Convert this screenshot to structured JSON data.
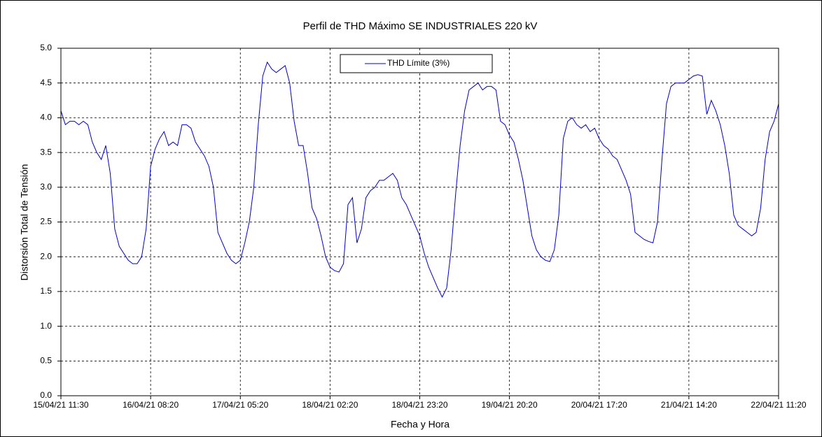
{
  "chart_data": {
    "type": "line",
    "title": "Perfil de THD Máximo  SE INDUSTRIALES 220 kV",
    "x_label": "Fecha y Hora",
    "y_label": "Distorsión Total de Tensión",
    "categories": [
      "15/04/21 11:30",
      null,
      null,
      null,
      null,
      null,
      null,
      null,
      null,
      null,
      null,
      null,
      null,
      null,
      null,
      null,
      null,
      null,
      null,
      null,
      "16/04/21 08:20",
      null,
      null,
      null,
      null,
      null,
      null,
      null,
      null,
      null,
      null,
      null,
      null,
      null,
      null,
      null,
      null,
      null,
      null,
      null,
      "17/04/21 05:20",
      null,
      null,
      null,
      null,
      null,
      null,
      null,
      null,
      null,
      null,
      null,
      null,
      null,
      null,
      null,
      null,
      null,
      null,
      null,
      "18/04/21 02:20",
      null,
      null,
      null,
      null,
      null,
      null,
      null,
      null,
      null,
      null,
      null,
      null,
      null,
      null,
      null,
      null,
      null,
      null,
      null,
      "18/04/21 23:20",
      null,
      null,
      null,
      null,
      null,
      null,
      null,
      null,
      null,
      null,
      null,
      null,
      null,
      null,
      null,
      null,
      null,
      null,
      null,
      "19/04/21 20:20",
      null,
      null,
      null,
      null,
      null,
      null,
      null,
      null,
      null,
      null,
      null,
      null,
      null,
      null,
      null,
      null,
      null,
      null,
      null,
      "20/04/21 17:20",
      null,
      null,
      null,
      null,
      null,
      null,
      null,
      null,
      null,
      null,
      null,
      null,
      null,
      null,
      null,
      null,
      null,
      null,
      null,
      "21/04/21 14:20",
      null,
      null,
      null,
      null,
      null,
      null,
      null,
      null,
      null,
      null,
      null,
      null,
      null,
      null,
      null,
      null,
      null,
      null,
      null,
      "22/04/21 11:20"
    ],
    "series": [
      {
        "name": "THD  Límite (3%)",
        "color": "#0000cc",
        "values": [
          4.1,
          3.9,
          3.95,
          3.95,
          3.9,
          3.95,
          3.9,
          3.65,
          3.5,
          3.4,
          3.6,
          3.2,
          2.4,
          2.15,
          2.05,
          1.95,
          1.9,
          1.9,
          2.0,
          2.4,
          3.3,
          3.55,
          3.7,
          3.8,
          3.6,
          3.65,
          3.6,
          3.9,
          3.9,
          3.85,
          3.65,
          3.55,
          3.45,
          3.3,
          3.0,
          2.35,
          2.2,
          2.05,
          1.95,
          1.9,
          1.95,
          2.2,
          2.5,
          3.0,
          3.9,
          4.6,
          4.8,
          4.7,
          4.65,
          4.7,
          4.75,
          4.5,
          3.95,
          3.6,
          3.6,
          3.2,
          2.7,
          2.55,
          2.3,
          2.0,
          1.85,
          1.8,
          1.78,
          1.9,
          2.75,
          2.85,
          2.2,
          2.4,
          2.85,
          2.95,
          3.0,
          3.1,
          3.1,
          3.15,
          3.2,
          3.1,
          2.85,
          2.75,
          2.6,
          2.45,
          2.3,
          2.05,
          1.85,
          1.7,
          1.55,
          1.42,
          1.55,
          2.1,
          2.9,
          3.6,
          4.1,
          4.4,
          4.45,
          4.5,
          4.4,
          4.45,
          4.45,
          4.4,
          3.95,
          3.9,
          3.75,
          3.65,
          3.4,
          3.1,
          2.7,
          2.3,
          2.1,
          2.0,
          1.95,
          1.93,
          2.1,
          2.6,
          3.7,
          3.95,
          4.0,
          3.9,
          3.85,
          3.9,
          3.8,
          3.85,
          3.7,
          3.6,
          3.55,
          3.45,
          3.4,
          3.25,
          3.1,
          2.9,
          2.35,
          2.3,
          2.25,
          2.22,
          2.2,
          2.5,
          3.4,
          4.2,
          4.45,
          4.5,
          4.5,
          4.5,
          4.55,
          4.6,
          4.62,
          4.6,
          4.05,
          4.25,
          4.1,
          3.9,
          3.6,
          3.2,
          2.6,
          2.45,
          2.4,
          2.35,
          2.3,
          2.35,
          2.7,
          3.4,
          3.8,
          3.95,
          4.2
        ]
      }
    ],
    "ylim": [
      0,
      5
    ],
    "yticks": [
      {
        "value": 0,
        "label": "0.0"
      },
      0.5,
      {
        "value": 1,
        "label": "1.0"
      },
      1.5,
      {
        "value": 2,
        "label": "2.0"
      },
      2.5,
      {
        "value": 3,
        "label": "3.0"
      },
      3.5,
      {
        "value": 4,
        "label": "4.0"
      },
      4.5,
      {
        "value": 5,
        "label": "5.0"
      }
    ],
    "grid": true,
    "legend": "upper center"
  }
}
